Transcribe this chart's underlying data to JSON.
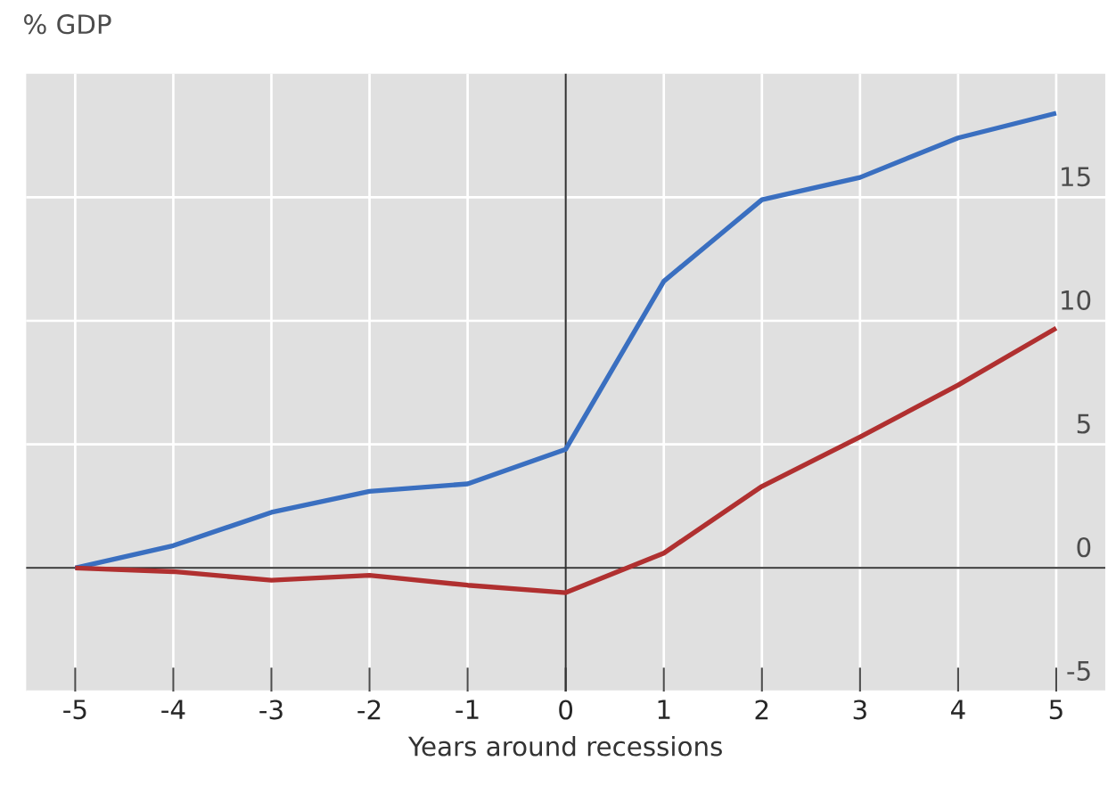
{
  "chart_data": {
    "type": "line",
    "ylabel": "% GDP",
    "xlabel": "Years around recessions",
    "x": [
      -5,
      -4,
      -3,
      -2,
      -1,
      0,
      1,
      2,
      3,
      4,
      5
    ],
    "series": [
      {
        "color": "#3a6fc0",
        "values": [
          0,
          0.9,
          2.25,
          3.1,
          3.4,
          4.8,
          11.6,
          14.9,
          15.8,
          17.4,
          18.4
        ]
      },
      {
        "color": "#b03030",
        "values": [
          0,
          -0.15,
          -0.5,
          -0.3,
          -0.7,
          -1.0,
          0.6,
          3.3,
          5.3,
          7.4,
          9.7
        ]
      }
    ],
    "xlim": [
      -5.5,
      5.5
    ],
    "ylim": [
      -5,
      20
    ],
    "xticks": [
      -5,
      -4,
      -3,
      -2,
      -1,
      0,
      1,
      2,
      3,
      4,
      5
    ],
    "yticks": [
      -5,
      0,
      5,
      10,
      15
    ],
    "grid": true,
    "marker": "none",
    "line_style": "solid"
  }
}
